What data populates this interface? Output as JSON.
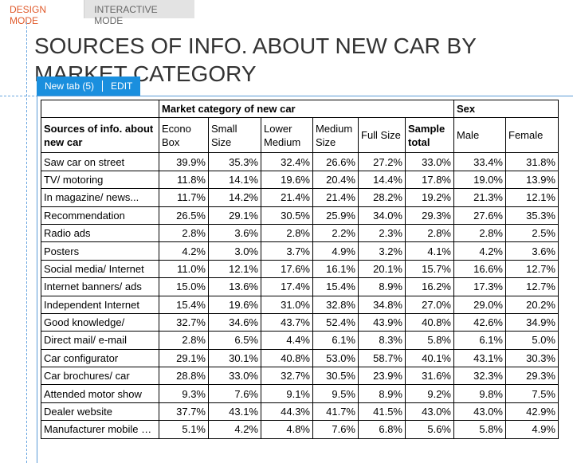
{
  "modes": {
    "design": "DESIGN MODE",
    "interactive": "INTERACTIVE MODE"
  },
  "title": "SOURCES OF INFO. ABOUT NEW CAR BY MARKET CATEGORY",
  "tab": {
    "label": "New tab (5)",
    "edit": "EDIT"
  },
  "colors": {
    "accent": "#1a8fde",
    "active_mode": "#e05a2b"
  },
  "table": {
    "group_market": "Market category of new car",
    "group_sex": "Sex",
    "row_header": "Sources of info. about new car",
    "columns": [
      "Econo Box",
      "Small Size",
      "Lower Medium",
      "Medium Size",
      "Full Size",
      "Sample total",
      "Male",
      "Female"
    ],
    "rows": [
      {
        "label": "Saw car on street",
        "values": [
          "39.9%",
          "35.3%",
          "32.4%",
          "26.6%",
          "27.2%",
          "33.0%",
          "33.4%",
          "31.8%"
        ]
      },
      {
        "label": "TV/ motoring",
        "values": [
          "11.8%",
          "14.1%",
          "19.6%",
          "20.4%",
          "14.4%",
          "17.8%",
          "19.0%",
          "13.9%"
        ]
      },
      {
        "label": "In magazine/ news...",
        "values": [
          "11.7%",
          "14.2%",
          "21.4%",
          "21.4%",
          "28.2%",
          "19.2%",
          "21.3%",
          "12.1%"
        ]
      },
      {
        "label": "Recommendation",
        "values": [
          "26.5%",
          "29.1%",
          "30.5%",
          "25.9%",
          "34.0%",
          "29.3%",
          "27.6%",
          "35.3%"
        ]
      },
      {
        "label": "Radio ads",
        "values": [
          "2.8%",
          "3.6%",
          "2.8%",
          "2.2%",
          "2.3%",
          "2.8%",
          "2.8%",
          "2.5%"
        ]
      },
      {
        "label": "Posters",
        "values": [
          "4.2%",
          "3.0%",
          "3.7%",
          "4.9%",
          "3.2%",
          "4.1%",
          "4.2%",
          "3.6%"
        ]
      },
      {
        "label": "Social media/ Internet",
        "values": [
          "11.0%",
          "12.1%",
          "17.6%",
          "16.1%",
          "20.1%",
          "15.7%",
          "16.6%",
          "12.7%"
        ]
      },
      {
        "label": "Internet banners/ ads",
        "values": [
          "15.0%",
          "13.6%",
          "17.4%",
          "15.4%",
          "8.9%",
          "16.2%",
          "17.3%",
          "12.7%"
        ]
      },
      {
        "label": "Independent Internet",
        "values": [
          "15.4%",
          "19.6%",
          "31.0%",
          "32.8%",
          "34.8%",
          "27.0%",
          "29.0%",
          "20.2%"
        ]
      },
      {
        "label": "Good knowledge/",
        "values": [
          "32.7%",
          "34.6%",
          "43.7%",
          "52.4%",
          "43.9%",
          "40.8%",
          "42.6%",
          "34.9%"
        ]
      },
      {
        "label": "Direct mail/ e-mail",
        "values": [
          "2.8%",
          "6.5%",
          "4.4%",
          "6.1%",
          "8.3%",
          "5.8%",
          "6.1%",
          "5.0%"
        ]
      },
      {
        "label": "Car configurator",
        "values": [
          "29.1%",
          "30.1%",
          "40.8%",
          "53.0%",
          "58.7%",
          "40.1%",
          "43.1%",
          "30.3%"
        ]
      },
      {
        "label": "Car brochures/ car",
        "values": [
          "28.8%",
          "33.0%",
          "32.7%",
          "30.5%",
          "23.9%",
          "31.6%",
          "32.3%",
          "29.3%"
        ]
      },
      {
        "label": "Attended motor show",
        "values": [
          "9.3%",
          "7.6%",
          "9.1%",
          "9.5%",
          "8.9%",
          "9.2%",
          "9.8%",
          "7.5%"
        ]
      },
      {
        "label": "Dealer website",
        "values": [
          "37.7%",
          "43.1%",
          "44.3%",
          "41.7%",
          "41.5%",
          "43.0%",
          "43.0%",
          "42.9%"
        ]
      },
      {
        "label": "Manufacturer mobile apps",
        "values": [
          "5.1%",
          "4.2%",
          "4.8%",
          "7.6%",
          "6.8%",
          "5.6%",
          "5.8%",
          "4.9%"
        ]
      }
    ]
  }
}
